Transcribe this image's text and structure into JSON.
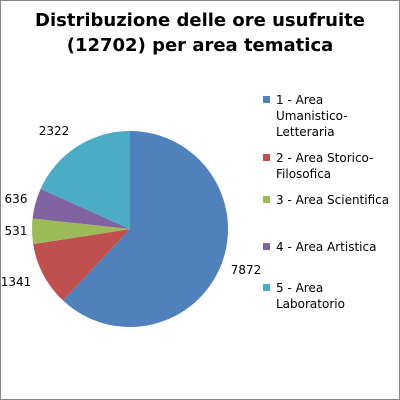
{
  "chart_data": {
    "type": "pie",
    "title_lines": [
      "Distribuzione delle ore usufruite",
      "(12702) per area tematica"
    ],
    "slices": [
      {
        "label": "1 - Area Umanistico-Letteraria",
        "legend_lines": [
          "1 - Area",
          "Umanistico-",
          "Letteraria"
        ],
        "value": 7872,
        "value_label": "7872",
        "color": "#4F81BD"
      },
      {
        "label": "2 - Area Storico-Filosofica",
        "legend_lines": [
          "2 - Area Storico-",
          "Filosofica"
        ],
        "value": 1341,
        "value_label": "1341",
        "color": "#C0504D"
      },
      {
        "label": "3 - Area Scientifica",
        "legend_lines": [
          "3 - Area Scientifica"
        ],
        "value": 531,
        "value_label": "531",
        "color": "#9BBB59"
      },
      {
        "label": "4 - Area Artistica",
        "legend_lines": [
          "4 - Area Artistica"
        ],
        "value": 636,
        "value_label": "636",
        "color": "#8064A2"
      },
      {
        "label": "5 - Area Laboratorio",
        "legend_lines": [
          "5 - Area",
          "Laboratorio"
        ],
        "value": 2322,
        "value_label": "2322",
        "color": "#4BACC6"
      }
    ],
    "start_angle_deg": 0,
    "direction": "clockwise",
    "legend_position": "right"
  }
}
